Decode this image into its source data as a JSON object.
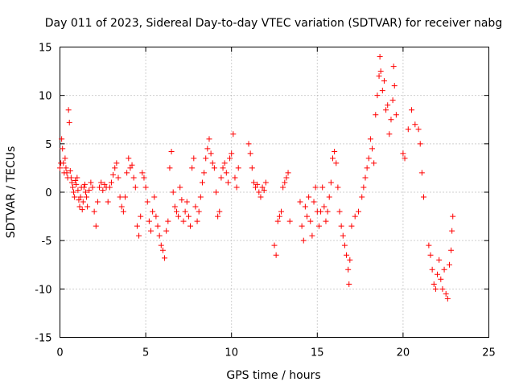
{
  "chart_data": {
    "type": "scatter",
    "title": "Day 011 of 2023, Sidereal Day-to-day VTEC variation (SDTVAR) for receiver nabg",
    "xlabel": "GPS time / hours",
    "ylabel": "SDTVAR / TECUs",
    "xlim": [
      0,
      25
    ],
    "ylim": [
      -15,
      15
    ],
    "xticks": [
      0,
      5,
      10,
      15,
      20,
      25
    ],
    "yticks": [
      -15,
      -10,
      -5,
      0,
      5,
      10,
      15
    ],
    "xtick_labels": [
      "0",
      "5",
      "10",
      "15",
      "20",
      "25"
    ],
    "ytick_labels": [
      "-15",
      "-10",
      "-5",
      "0",
      "5",
      "10",
      "15"
    ],
    "grid": true,
    "marker": "+",
    "series": [
      {
        "name": "SDTVAR",
        "color": "#ff0000",
        "points": [
          [
            0.0,
            2.5
          ],
          [
            0.05,
            3.0
          ],
          [
            0.1,
            5.5
          ],
          [
            0.15,
            4.5
          ],
          [
            0.2,
            3.0
          ],
          [
            0.25,
            2.0
          ],
          [
            0.3,
            3.5
          ],
          [
            0.35,
            2.5
          ],
          [
            0.4,
            2.0
          ],
          [
            0.45,
            1.5
          ],
          [
            0.5,
            8.5
          ],
          [
            0.55,
            7.2
          ],
          [
            0.6,
            2.2
          ],
          [
            0.65,
            1.5
          ],
          [
            0.7,
            1.0
          ],
          [
            0.75,
            0.5
          ],
          [
            0.8,
            0.0
          ],
          [
            0.85,
            -0.5
          ],
          [
            0.9,
            1.2
          ],
          [
            0.95,
            0.8
          ],
          [
            1.0,
            1.5
          ],
          [
            1.05,
            0.2
          ],
          [
            1.1,
            -0.8
          ],
          [
            1.15,
            -1.5
          ],
          [
            1.2,
            -0.5
          ],
          [
            1.25,
            0.5
          ],
          [
            1.3,
            -1.8
          ],
          [
            1.35,
            -1.0
          ],
          [
            1.4,
            0.5
          ],
          [
            1.45,
            0.8
          ],
          [
            1.5,
            0.0
          ],
          [
            1.55,
            -0.5
          ],
          [
            1.6,
            -1.5
          ],
          [
            1.7,
            0.2
          ],
          [
            1.8,
            1.0
          ],
          [
            1.9,
            0.5
          ],
          [
            2.0,
            -2.0
          ],
          [
            2.1,
            -3.5
          ],
          [
            2.2,
            -1.0
          ],
          [
            2.3,
            0.5
          ],
          [
            2.4,
            1.0
          ],
          [
            2.5,
            0.2
          ],
          [
            2.6,
            0.8
          ],
          [
            2.7,
            0.5
          ],
          [
            2.8,
            -1.0
          ],
          [
            2.9,
            0.5
          ],
          [
            3.0,
            1.0
          ],
          [
            3.1,
            1.8
          ],
          [
            3.2,
            2.5
          ],
          [
            3.3,
            3.0
          ],
          [
            3.4,
            1.5
          ],
          [
            3.5,
            -0.5
          ],
          [
            3.6,
            -1.5
          ],
          [
            3.7,
            -2.0
          ],
          [
            3.8,
            -0.5
          ],
          [
            3.9,
            2.0
          ],
          [
            4.0,
            3.5
          ],
          [
            4.1,
            2.5
          ],
          [
            4.2,
            2.8
          ],
          [
            4.3,
            1.5
          ],
          [
            4.4,
            0.5
          ],
          [
            4.5,
            -3.5
          ],
          [
            4.6,
            -4.5
          ],
          [
            4.7,
            -2.5
          ],
          [
            4.8,
            2.0
          ],
          [
            4.9,
            1.5
          ],
          [
            5.0,
            0.5
          ],
          [
            5.1,
            -1.0
          ],
          [
            5.2,
            -3.0
          ],
          [
            5.3,
            -4.0
          ],
          [
            5.4,
            -2.0
          ],
          [
            5.5,
            -0.5
          ],
          [
            5.6,
            -2.5
          ],
          [
            5.7,
            -3.5
          ],
          [
            5.8,
            -4.5
          ],
          [
            5.9,
            -5.5
          ],
          [
            6.0,
            -6.0
          ],
          [
            6.1,
            -6.8
          ],
          [
            6.2,
            -4.0
          ],
          [
            6.3,
            -3.0
          ],
          [
            6.4,
            2.5
          ],
          [
            6.5,
            4.2
          ],
          [
            6.6,
            0.0
          ],
          [
            6.7,
            -1.5
          ],
          [
            6.8,
            -2.0
          ],
          [
            6.9,
            -2.5
          ],
          [
            7.0,
            0.5
          ],
          [
            7.1,
            -0.8
          ],
          [
            7.2,
            -3.0
          ],
          [
            7.3,
            -2.0
          ],
          [
            7.4,
            -1.0
          ],
          [
            7.5,
            -2.5
          ],
          [
            7.6,
            -3.5
          ],
          [
            7.7,
            2.5
          ],
          [
            7.8,
            3.5
          ],
          [
            7.9,
            -1.5
          ],
          [
            8.0,
            -3.0
          ],
          [
            8.1,
            -2.0
          ],
          [
            8.2,
            -0.5
          ],
          [
            8.3,
            1.0
          ],
          [
            8.4,
            2.0
          ],
          [
            8.5,
            3.5
          ],
          [
            8.6,
            4.5
          ],
          [
            8.7,
            5.5
          ],
          [
            8.8,
            4.0
          ],
          [
            8.9,
            3.0
          ],
          [
            9.0,
            2.5
          ],
          [
            9.1,
            0.0
          ],
          [
            9.2,
            -2.5
          ],
          [
            9.3,
            -2.0
          ],
          [
            9.4,
            1.5
          ],
          [
            9.5,
            2.5
          ],
          [
            9.6,
            3.0
          ],
          [
            9.7,
            2.0
          ],
          [
            9.8,
            1.0
          ],
          [
            9.9,
            3.5
          ],
          [
            10.0,
            4.0
          ],
          [
            10.1,
            6.0
          ],
          [
            10.2,
            1.5
          ],
          [
            10.3,
            0.5
          ],
          [
            10.4,
            2.5
          ],
          [
            11.0,
            5.0
          ],
          [
            11.1,
            4.0
          ],
          [
            11.2,
            2.5
          ],
          [
            11.3,
            1.0
          ],
          [
            11.4,
            0.5
          ],
          [
            11.5,
            0.8
          ],
          [
            11.6,
            0.0
          ],
          [
            11.7,
            -0.5
          ],
          [
            11.8,
            0.5
          ],
          [
            11.9,
            0.2
          ],
          [
            12.0,
            1.0
          ],
          [
            12.5,
            -5.5
          ],
          [
            12.6,
            -6.5
          ],
          [
            12.7,
            -3.0
          ],
          [
            12.8,
            -2.5
          ],
          [
            12.9,
            -2.0
          ],
          [
            13.0,
            0.5
          ],
          [
            13.1,
            1.0
          ],
          [
            13.2,
            1.5
          ],
          [
            13.3,
            2.0
          ],
          [
            13.4,
            -3.0
          ],
          [
            14.0,
            -1.0
          ],
          [
            14.1,
            -3.5
          ],
          [
            14.2,
            -5.0
          ],
          [
            14.3,
            -1.5
          ],
          [
            14.4,
            -2.5
          ],
          [
            14.5,
            -0.5
          ],
          [
            14.6,
            -3.0
          ],
          [
            14.7,
            -4.5
          ],
          [
            14.8,
            -1.0
          ],
          [
            14.9,
            0.5
          ],
          [
            15.0,
            -2.0
          ],
          [
            15.1,
            -3.5
          ],
          [
            15.2,
            -2.0
          ],
          [
            15.3,
            0.5
          ],
          [
            15.4,
            -1.5
          ],
          [
            15.5,
            -3.0
          ],
          [
            15.6,
            -2.0
          ],
          [
            15.7,
            -0.5
          ],
          [
            15.8,
            1.0
          ],
          [
            15.9,
            3.5
          ],
          [
            16.0,
            4.2
          ],
          [
            16.1,
            3.0
          ],
          [
            16.2,
            0.5
          ],
          [
            16.3,
            -2.0
          ],
          [
            16.4,
            -3.5
          ],
          [
            16.5,
            -4.5
          ],
          [
            16.6,
            -5.5
          ],
          [
            16.7,
            -6.5
          ],
          [
            16.8,
            -8.0
          ],
          [
            16.85,
            -9.5
          ],
          [
            16.9,
            -7.0
          ],
          [
            17.0,
            -3.5
          ],
          [
            17.2,
            -2.5
          ],
          [
            17.4,
            -2.0
          ],
          [
            17.6,
            -0.5
          ],
          [
            17.7,
            0.5
          ],
          [
            17.8,
            1.5
          ],
          [
            17.9,
            2.5
          ],
          [
            18.0,
            3.5
          ],
          [
            18.1,
            5.5
          ],
          [
            18.2,
            4.5
          ],
          [
            18.3,
            3.0
          ],
          [
            18.4,
            8.0
          ],
          [
            18.5,
            10.0
          ],
          [
            18.6,
            12.0
          ],
          [
            18.65,
            14.0
          ],
          [
            18.7,
            12.5
          ],
          [
            18.8,
            10.5
          ],
          [
            18.9,
            11.5
          ],
          [
            19.0,
            8.5
          ],
          [
            19.1,
            9.0
          ],
          [
            19.2,
            6.0
          ],
          [
            19.3,
            7.5
          ],
          [
            19.4,
            9.5
          ],
          [
            19.45,
            13.0
          ],
          [
            19.5,
            11.0
          ],
          [
            19.6,
            8.0
          ],
          [
            20.0,
            4.0
          ],
          [
            20.1,
            3.5
          ],
          [
            20.3,
            6.5
          ],
          [
            20.5,
            8.5
          ],
          [
            20.7,
            7.0
          ],
          [
            20.9,
            6.5
          ],
          [
            21.0,
            5.0
          ],
          [
            21.1,
            2.0
          ],
          [
            21.2,
            -0.5
          ],
          [
            21.5,
            -5.5
          ],
          [
            21.6,
            -6.5
          ],
          [
            21.7,
            -8.0
          ],
          [
            21.8,
            -9.5
          ],
          [
            21.9,
            -10.0
          ],
          [
            22.0,
            -8.5
          ],
          [
            22.1,
            -7.0
          ],
          [
            22.2,
            -9.0
          ],
          [
            22.3,
            -10.0
          ],
          [
            22.4,
            -8.0
          ],
          [
            22.5,
            -10.5
          ],
          [
            22.6,
            -11.0
          ],
          [
            22.7,
            -7.5
          ],
          [
            22.8,
            -6.0
          ],
          [
            22.85,
            -4.0
          ],
          [
            22.9,
            -2.5
          ]
        ]
      }
    ]
  }
}
